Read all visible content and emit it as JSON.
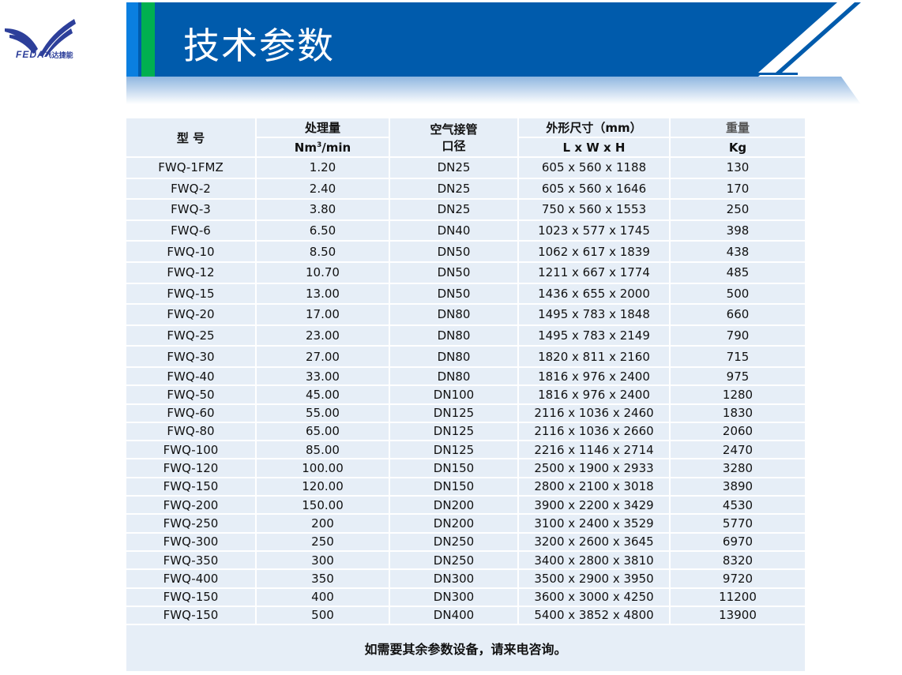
{
  "logo": {
    "brand": "FEDA",
    "brand_cn": "飞达捷能"
  },
  "title": "技术参数",
  "colors": {
    "banner_blue": "#005bac",
    "stripe_blue": "#0a7fe0",
    "stripe_green": "#00b050",
    "table_bg": "#e6eef7"
  },
  "table": {
    "headers": {
      "model": "型 号",
      "flow": "处理量",
      "flow_unit_prefix": "Nm",
      "flow_unit_sup": "3",
      "flow_unit_suffix": "/min",
      "inlet": "空气接管口径",
      "inlet_line1": "空气接管",
      "inlet_line2": "口径",
      "dims": "外形尺寸（mm）",
      "dims_unit": "L x W x H",
      "weight": "重量",
      "weight_unit": "Kg"
    },
    "rows": [
      [
        "FWQ-1FMZ",
        "1.20",
        "DN25",
        "605 x 560 x 1188",
        "130"
      ],
      [
        "FWQ-2",
        "2.40",
        "DN25",
        "605 x 560 x 1646",
        "170"
      ],
      [
        "FWQ-3",
        "3.80",
        "DN25",
        "750 x 560 x 1553",
        "250"
      ],
      [
        "FWQ-6",
        "6.50",
        "DN40",
        "1023 x 577 x 1745",
        "398"
      ],
      [
        "FWQ-10",
        "8.50",
        "DN50",
        "1062 x 617 x 1839",
        "438"
      ],
      [
        "FWQ-12",
        "10.70",
        "DN50",
        "1211 x 667 x 1774",
        "485"
      ],
      [
        "FWQ-15",
        "13.00",
        "DN50",
        "1436 x 655 x 2000",
        "500"
      ],
      [
        "FWQ-20",
        "17.00",
        "DN80",
        "1495 x 783 x 1848",
        "660"
      ],
      [
        "FWQ-25",
        "23.00",
        "DN80",
        "1495 x 783 x 2149",
        "790"
      ],
      [
        "FWQ-30",
        "27.00",
        "DN80",
        "1820 x 811 x 2160",
        "715"
      ],
      [
        "FWQ-40",
        "33.00",
        "DN80",
        "1816 x 976 x 2400",
        "975"
      ],
      [
        "FWQ-50",
        "45.00",
        "DN100",
        "1816 x 976 x 2400",
        "1280"
      ],
      [
        "FWQ-60",
        "55.00",
        "DN125",
        "2116 x 1036 x 2460",
        "1830"
      ],
      [
        "FWQ-80",
        "65.00",
        "DN125",
        "2116 x 1036 x 2660",
        "2060"
      ],
      [
        "FWQ-100",
        "85.00",
        "DN125",
        "2216 x 1146 x 2714",
        "2470"
      ],
      [
        "FWQ-120",
        "100.00",
        "DN150",
        "2500 x 1900 x 2933",
        "3280"
      ],
      [
        "FWQ-150",
        "120.00",
        "DN150",
        "2800 x 2100 x 3018",
        "3890"
      ],
      [
        "FWQ-200",
        "150.00",
        "DN200",
        "3900 x 2200 x 3429",
        "4530"
      ],
      [
        "FWQ-250",
        "200",
        "DN200",
        "3100 x 2400 x 3529",
        "5770"
      ],
      [
        "FWQ-300",
        "250",
        "DN250",
        "3200 x 2600 x 3645",
        "6970"
      ],
      [
        "FWQ-350",
        "300",
        "DN250",
        "3400 x 2800 x 3810",
        "8320"
      ],
      [
        "FWQ-400",
        "350",
        "DN300",
        "3500 x 2900 x 3950",
        "9720"
      ],
      [
        "FWQ-150",
        "400",
        "DN300",
        "3600 x 3000 x 4250",
        "11200"
      ],
      [
        "FWQ-150",
        "500",
        "DN400",
        "5400 x 3852 x 4800",
        "13900"
      ]
    ],
    "footer": "如需要其余参数设备，请来电咨询。"
  }
}
